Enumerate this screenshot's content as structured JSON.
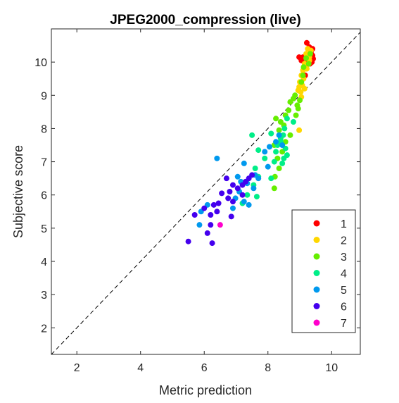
{
  "chart_data": {
    "type": "scatter",
    "title": "JPEG2000_compression (live)",
    "xlabel": "Metric prediction",
    "ylabel": "Subjective score",
    "xlim": [
      1.2,
      10.9
    ],
    "ylim": [
      1.2,
      11.0
    ],
    "xticks": [
      2,
      4,
      6,
      8,
      10
    ],
    "yticks": [
      2,
      3,
      4,
      5,
      6,
      7,
      8,
      9,
      10
    ],
    "grid": false,
    "reference_line": "identity (y = x), dashed",
    "legend_position": "lower-right",
    "series": [
      {
        "name": "1",
        "color": "#ff0000",
        "points": [
          [
            9.22,
            10.58
          ],
          [
            9.3,
            10.45
          ],
          [
            9.35,
            10.3
          ],
          [
            9.4,
            10.2
          ],
          [
            9.42,
            10.1
          ],
          [
            9.38,
            10.0
          ],
          [
            9.32,
            9.95
          ],
          [
            9.25,
            10.05
          ],
          [
            9.18,
            10.12
          ],
          [
            9.1,
            10.15
          ],
          [
            8.98,
            10.15
          ],
          [
            9.05,
            10.05
          ],
          [
            9.2,
            9.9
          ],
          [
            9.4,
            10.4
          ],
          [
            9.28,
            10.22
          ],
          [
            9.17,
            9.6
          ]
        ]
      },
      {
        "name": "2",
        "color": "#ffd700",
        "points": [
          [
            9.25,
            10.4
          ],
          [
            9.35,
            10.35
          ],
          [
            9.2,
            10.25
          ],
          [
            9.3,
            10.15
          ],
          [
            9.15,
            9.95
          ],
          [
            9.1,
            9.75
          ],
          [
            9.05,
            9.6
          ],
          [
            9.12,
            9.5
          ],
          [
            9.0,
            9.4
          ],
          [
            9.08,
            9.3
          ],
          [
            8.98,
            9.25
          ],
          [
            9.03,
            9.1
          ],
          [
            9.15,
            9.2
          ],
          [
            8.95,
            9.15
          ],
          [
            9.22,
            9.8
          ],
          [
            9.3,
            10.05
          ],
          [
            9.05,
            8.95
          ],
          [
            8.98,
            7.95
          ]
        ]
      },
      {
        "name": "3",
        "color": "#66ee00",
        "points": [
          [
            9.33,
            10.25
          ],
          [
            9.2,
            10.12
          ],
          [
            9.28,
            9.95
          ],
          [
            9.12,
            9.85
          ],
          [
            9.1,
            9.6
          ],
          [
            8.85,
            9.0
          ],
          [
            9.0,
            8.85
          ],
          [
            8.92,
            8.7
          ],
          [
            8.8,
            8.9
          ],
          [
            8.7,
            8.8
          ],
          [
            8.95,
            8.6
          ],
          [
            8.88,
            8.4
          ],
          [
            8.55,
            8.4
          ],
          [
            8.4,
            8.2
          ],
          [
            8.25,
            8.3
          ],
          [
            8.35,
            7.95
          ],
          [
            8.7,
            7.8
          ],
          [
            8.55,
            7.6
          ],
          [
            8.45,
            7.3
          ],
          [
            8.2,
            7.5
          ],
          [
            8.3,
            7.1
          ],
          [
            8.35,
            6.8
          ],
          [
            8.22,
            6.55
          ],
          [
            8.2,
            6.2
          ],
          [
            8.5,
            8.1
          ],
          [
            9.05,
            9.4
          ],
          [
            8.65,
            8.55
          ]
        ]
      },
      {
        "name": "4",
        "color": "#00ee88",
        "points": [
          [
            8.6,
            8.3
          ],
          [
            8.52,
            8.0
          ],
          [
            8.48,
            7.8
          ],
          [
            8.4,
            7.6
          ],
          [
            8.3,
            7.5
          ],
          [
            8.55,
            7.4
          ],
          [
            8.6,
            7.2
          ],
          [
            8.5,
            7.1
          ],
          [
            8.45,
            6.95
          ],
          [
            8.25,
            7.3
          ],
          [
            8.2,
            7.0
          ],
          [
            7.9,
            7.1
          ],
          [
            7.7,
            7.35
          ],
          [
            8.1,
            7.85
          ],
          [
            7.6,
            6.8
          ],
          [
            7.7,
            6.55
          ],
          [
            7.55,
            6.3
          ],
          [
            7.35,
            6.0
          ],
          [
            7.65,
            5.95
          ],
          [
            7.2,
            5.75
          ],
          [
            7.5,
            7.8
          ],
          [
            8.4,
            7.7
          ],
          [
            8.1,
            6.5
          ],
          [
            8.8,
            8.2
          ]
        ]
      },
      {
        "name": "5",
        "color": "#0099ee",
        "points": [
          [
            8.35,
            7.8
          ],
          [
            8.25,
            7.6
          ],
          [
            8.05,
            7.45
          ],
          [
            7.9,
            7.3
          ],
          [
            8.45,
            7.5
          ],
          [
            8.0,
            6.85
          ],
          [
            7.7,
            6.5
          ],
          [
            7.55,
            6.2
          ],
          [
            7.35,
            6.35
          ],
          [
            7.25,
            6.95
          ],
          [
            7.05,
            6.55
          ],
          [
            7.1,
            6.1
          ],
          [
            6.98,
            5.9
          ],
          [
            7.25,
            5.8
          ],
          [
            6.9,
            5.6
          ],
          [
            7.4,
            5.7
          ],
          [
            6.4,
            7.1
          ],
          [
            6.1,
            5.7
          ],
          [
            5.9,
            5.5
          ],
          [
            5.85,
            5.1
          ],
          [
            7.15,
            6.4
          ],
          [
            7.6,
            6.6
          ]
        ]
      },
      {
        "name": "6",
        "color": "#4400ee",
        "points": [
          [
            7.5,
            6.6
          ],
          [
            7.4,
            6.5
          ],
          [
            7.3,
            6.4
          ],
          [
            7.2,
            6.3
          ],
          [
            7.05,
            6.2
          ],
          [
            6.9,
            6.3
          ],
          [
            6.8,
            6.1
          ],
          [
            6.75,
            5.9
          ],
          [
            6.7,
            6.5
          ],
          [
            6.55,
            6.05
          ],
          [
            6.45,
            5.75
          ],
          [
            6.3,
            5.7
          ],
          [
            6.4,
            5.5
          ],
          [
            6.2,
            5.4
          ],
          [
            6.0,
            5.6
          ],
          [
            5.7,
            5.4
          ],
          [
            6.2,
            5.1
          ],
          [
            6.1,
            4.85
          ],
          [
            5.5,
            4.6
          ],
          [
            6.25,
            4.55
          ],
          [
            6.85,
            5.35
          ],
          [
            7.2,
            6.0
          ],
          [
            6.9,
            5.8
          ]
        ]
      },
      {
        "name": "7",
        "color": "#ff00cc",
        "points": [
          [
            6.5,
            5.1
          ]
        ]
      }
    ]
  }
}
